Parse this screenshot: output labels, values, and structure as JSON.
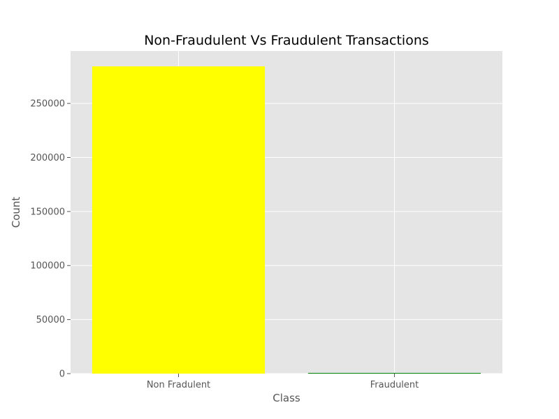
{
  "chart_data": {
    "type": "bar",
    "title": "Non-Fraudulent Vs Fraudulent Transactions",
    "xlabel": "Class",
    "ylabel": "Count",
    "categories": [
      "Non Fradulent",
      "Fraudulent"
    ],
    "values": [
      284315,
      492
    ],
    "bar_colors": [
      "#ffff00",
      "#008000"
    ],
    "ylim": [
      0,
      298531
    ],
    "yticks": [
      0,
      50000,
      100000,
      150000,
      200000,
      250000
    ],
    "ytick_labels": [
      "0",
      "50000",
      "100000",
      "150000",
      "200000",
      "250000"
    ],
    "grid": true,
    "background_color": "#e5e5e5",
    "grid_color": "#ffffff"
  }
}
